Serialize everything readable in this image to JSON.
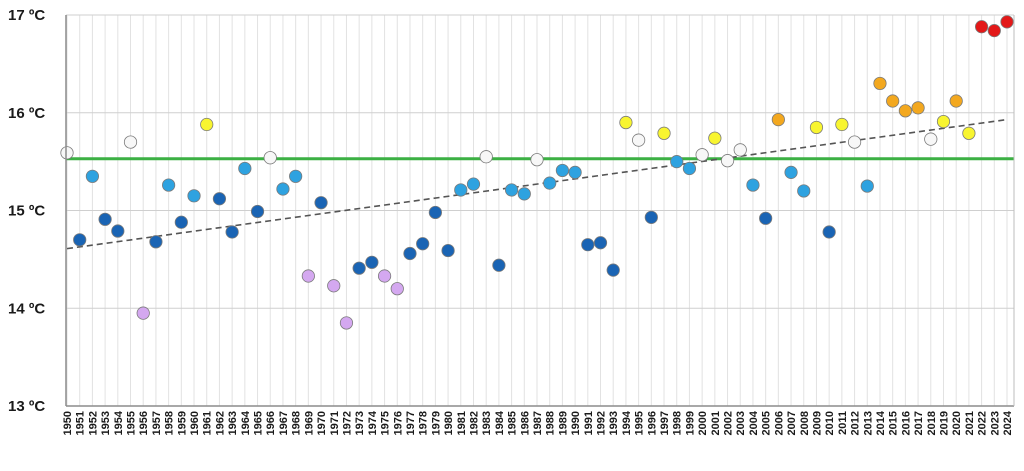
{
  "chart_data": {
    "type": "scatter",
    "title": "",
    "xlabel": "",
    "ylabel": "",
    "ylim": [
      13,
      17
    ],
    "xlim": [
      1950,
      2024
    ],
    "y_tick_values": [
      13,
      14,
      15,
      16,
      17
    ],
    "y_tick_labels": [
      "13 ºC",
      "14 ºC",
      "15 ºC",
      "16 ºC",
      "17 ºC"
    ],
    "grid": true,
    "reference_line": {
      "value": 15.53,
      "color": "#3cb043"
    },
    "trend_line": {
      "x": [
        1950,
        2024
      ],
      "y": [
        14.61,
        15.93
      ],
      "color": "#555555",
      "style": "dashed"
    },
    "category_colors": {
      "very_cold": "#d4a8f0",
      "cold": "#1a64b4",
      "cool": "#2ea2e0",
      "normal": "#f7f7f7",
      "warm": "#f8f530",
      "very_warm": "#f3a81f",
      "extremely_warm": "#e31818"
    },
    "points": [
      {
        "x": "1950",
        "y": 15.59,
        "category": "normal"
      },
      {
        "x": "1951",
        "y": 14.7,
        "category": "cold"
      },
      {
        "x": "1952",
        "y": 15.35,
        "category": "cool"
      },
      {
        "x": "1953",
        "y": 14.91,
        "category": "cold"
      },
      {
        "x": "1954",
        "y": 14.79,
        "category": "cold"
      },
      {
        "x": "1955",
        "y": 15.7,
        "category": "normal"
      },
      {
        "x": "1956",
        "y": 13.95,
        "category": "very_cold"
      },
      {
        "x": "1957",
        "y": 14.68,
        "category": "cold"
      },
      {
        "x": "1958",
        "y": 15.26,
        "category": "cool"
      },
      {
        "x": "1959",
        "y": 14.88,
        "category": "cold"
      },
      {
        "x": "1960",
        "y": 15.15,
        "category": "cool"
      },
      {
        "x": "1961",
        "y": 15.88,
        "category": "warm"
      },
      {
        "x": "1962",
        "y": 15.12,
        "category": "cold"
      },
      {
        "x": "1963",
        "y": 14.78,
        "category": "cold"
      },
      {
        "x": "1964",
        "y": 15.43,
        "category": "cool"
      },
      {
        "x": "1965",
        "y": 14.99,
        "category": "cold"
      },
      {
        "x": "1966",
        "y": 15.54,
        "category": "normal"
      },
      {
        "x": "1967",
        "y": 15.22,
        "category": "cool"
      },
      {
        "x": "1968",
        "y": 15.35,
        "category": "cool"
      },
      {
        "x": "1969",
        "y": 14.33,
        "category": "very_cold"
      },
      {
        "x": "1970",
        "y": 15.08,
        "category": "cold"
      },
      {
        "x": "1971",
        "y": 14.23,
        "category": "very_cold"
      },
      {
        "x": "1972",
        "y": 13.85,
        "category": "very_cold"
      },
      {
        "x": "1973",
        "y": 14.41,
        "category": "cold"
      },
      {
        "x": "1974",
        "y": 14.47,
        "category": "cold"
      },
      {
        "x": "1975",
        "y": 14.33,
        "category": "very_cold"
      },
      {
        "x": "1976",
        "y": 14.2,
        "category": "very_cold"
      },
      {
        "x": "1977",
        "y": 14.56,
        "category": "cold"
      },
      {
        "x": "1978",
        "y": 14.66,
        "category": "cold"
      },
      {
        "x": "1979",
        "y": 14.98,
        "category": "cold"
      },
      {
        "x": "1980",
        "y": 14.59,
        "category": "cold"
      },
      {
        "x": "1981",
        "y": 15.21,
        "category": "cool"
      },
      {
        "x": "1982",
        "y": 15.27,
        "category": "cool"
      },
      {
        "x": "1983",
        "y": 15.55,
        "category": "normal"
      },
      {
        "x": "1984",
        "y": 14.44,
        "category": "cold"
      },
      {
        "x": "1985",
        "y": 15.21,
        "category": "cool"
      },
      {
        "x": "1986",
        "y": 15.17,
        "category": "cool"
      },
      {
        "x": "1987",
        "y": 15.52,
        "category": "normal"
      },
      {
        "x": "1988",
        "y": 15.28,
        "category": "cool"
      },
      {
        "x": "1989",
        "y": 15.41,
        "category": "cool"
      },
      {
        "x": "1990",
        "y": 15.39,
        "category": "cool"
      },
      {
        "x": "1991",
        "y": 14.65,
        "category": "cold"
      },
      {
        "x": "1992",
        "y": 14.67,
        "category": "cold"
      },
      {
        "x": "1993",
        "y": 14.39,
        "category": "cold"
      },
      {
        "x": "1994",
        "y": 15.9,
        "category": "warm"
      },
      {
        "x": "1995",
        "y": 15.72,
        "category": "normal"
      },
      {
        "x": "1996",
        "y": 14.93,
        "category": "cold"
      },
      {
        "x": "1997",
        "y": 15.79,
        "category": "warm"
      },
      {
        "x": "1998",
        "y": 15.5,
        "category": "cool"
      },
      {
        "x": "1999",
        "y": 15.43,
        "category": "cool"
      },
      {
        "x": "2000",
        "y": 15.57,
        "category": "normal"
      },
      {
        "x": "2001",
        "y": 15.74,
        "category": "warm"
      },
      {
        "x": "2002",
        "y": 15.51,
        "category": "normal"
      },
      {
        "x": "2003",
        "y": 15.62,
        "category": "normal"
      },
      {
        "x": "2004",
        "y": 15.26,
        "category": "cool"
      },
      {
        "x": "2005",
        "y": 14.92,
        "category": "cold"
      },
      {
        "x": "2006",
        "y": 15.93,
        "category": "very_warm"
      },
      {
        "x": "2007",
        "y": 15.39,
        "category": "cool"
      },
      {
        "x": "2008",
        "y": 15.2,
        "category": "cool"
      },
      {
        "x": "2009",
        "y": 15.85,
        "category": "warm"
      },
      {
        "x": "2010",
        "y": 14.78,
        "category": "cold"
      },
      {
        "x": "2011",
        "y": 15.88,
        "category": "warm"
      },
      {
        "x": "2012",
        "y": 15.7,
        "category": "normal"
      },
      {
        "x": "2013",
        "y": 15.25,
        "category": "cool"
      },
      {
        "x": "2014",
        "y": 16.3,
        "category": "very_warm"
      },
      {
        "x": "2015",
        "y": 16.12,
        "category": "very_warm"
      },
      {
        "x": "2016",
        "y": 16.02,
        "category": "very_warm"
      },
      {
        "x": "2017",
        "y": 16.05,
        "category": "very_warm"
      },
      {
        "x": "2018",
        "y": 15.73,
        "category": "normal"
      },
      {
        "x": "2019",
        "y": 15.91,
        "category": "warm"
      },
      {
        "x": "2020",
        "y": 16.12,
        "category": "very_warm"
      },
      {
        "x": "2021",
        "y": 15.79,
        "category": "warm"
      },
      {
        "x": "2022",
        "y": 16.88,
        "category": "extremely_warm"
      },
      {
        "x": "2023",
        "y": 16.84,
        "category": "extremely_warm"
      },
      {
        "x": "2024",
        "y": 16.93,
        "category": "extremely_warm"
      }
    ]
  }
}
